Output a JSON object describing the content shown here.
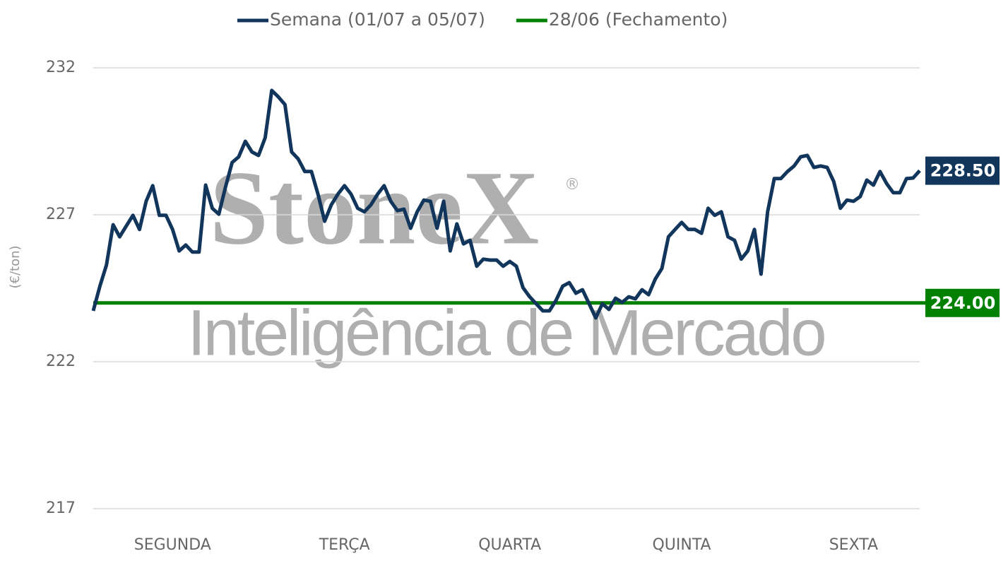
{
  "chart_data": {
    "type": "line",
    "y_label": "(€/ton)",
    "watermark": {
      "brand": "StoneX",
      "mark": "®",
      "tagline": "Inteligência de Mercado"
    },
    "categories": [
      null,
      null,
      null,
      null,
      null,
      null,
      null,
      null,
      null,
      null,
      null,
      null,
      "SEGUNDA",
      null,
      null,
      null,
      null,
      null,
      null,
      null,
      null,
      null,
      null,
      null,
      null,
      null,
      null,
      null,
      null,
      null,
      null,
      null,
      null,
      null,
      null,
      null,
      null,
      null,
      "TERÇA",
      null,
      null,
      null,
      null,
      null,
      null,
      null,
      null,
      null,
      null,
      null,
      null,
      null,
      null,
      null,
      null,
      null,
      null,
      null,
      null,
      null,
      null,
      null,
      null,
      "QUARTA",
      null,
      null,
      null,
      null,
      null,
      null,
      null,
      null,
      null,
      null,
      null,
      null,
      null,
      null,
      null,
      null,
      null,
      null,
      null,
      null,
      null,
      null,
      null,
      null,
      null,
      "QUINTA",
      null,
      null,
      null,
      null,
      null,
      null,
      null,
      null,
      null,
      null,
      null,
      null,
      null,
      null,
      null,
      null,
      null,
      null,
      null,
      null,
      null,
      null,
      null,
      null,
      null,
      "SEXTA",
      null,
      null,
      null,
      null,
      null,
      null,
      null,
      null,
      null,
      null
    ],
    "series": [
      {
        "name": "Semana (01/07 a 05/07)",
        "color": "#12355b",
        "values": [
          223.73,
          224.57,
          225.29,
          226.66,
          226.25,
          226.62,
          226.98,
          226.5,
          227.46,
          227.99,
          226.98,
          226.98,
          226.5,
          225.77,
          225.97,
          225.73,
          225.73,
          228.01,
          227.22,
          227.02,
          227.94,
          228.78,
          228.97,
          229.5,
          229.14,
          229.02,
          229.62,
          231.23,
          231.01,
          230.75,
          229.14,
          228.9,
          228.47,
          228.47,
          227.7,
          226.78,
          227.34,
          227.7,
          227.99,
          227.7,
          227.22,
          227.1,
          227.34,
          227.7,
          227.99,
          227.46,
          227.14,
          227.19,
          226.54,
          227.1,
          227.5,
          227.46,
          226.54,
          227.46,
          225.77,
          226.69,
          226.01,
          226.13,
          225.25,
          225.49,
          225.46,
          225.46,
          225.25,
          225.41,
          225.25,
          224.52,
          224.21,
          223.97,
          223.73,
          223.73,
          224.09,
          224.57,
          224.69,
          224.33,
          224.45,
          223.97,
          223.49,
          223.97,
          223.78,
          224.16,
          224.02,
          224.21,
          224.14,
          224.45,
          224.28,
          224.81,
          225.17,
          226.25,
          226.5,
          226.74,
          226.5,
          226.5,
          226.37,
          227.22,
          226.98,
          227.1,
          226.25,
          226.13,
          225.49,
          225.77,
          226.5,
          224.98,
          227.1,
          228.23,
          228.23,
          228.47,
          228.66,
          228.97,
          229.02,
          228.61,
          228.66,
          228.61,
          228.13,
          227.22,
          227.5,
          227.46,
          227.62,
          228.18,
          228.01,
          228.47,
          228.06,
          227.75,
          227.75,
          228.23,
          228.25,
          228.5
        ],
        "value_labels": [
          null,
          null,
          null,
          null,
          null,
          null,
          null,
          null,
          null,
          null,
          null,
          null,
          null,
          null,
          null,
          null,
          null,
          null,
          null,
          null,
          null,
          null,
          null,
          null,
          null,
          null,
          null,
          null,
          null,
          null,
          null,
          null,
          null,
          null,
          null,
          null,
          null,
          null,
          null,
          null,
          null,
          null,
          null,
          null,
          null,
          null,
          null,
          null,
          null,
          null,
          null,
          null,
          null,
          null,
          null,
          null,
          null,
          null,
          null,
          null,
          null,
          null,
          null,
          null,
          null,
          null,
          null,
          null,
          null,
          null,
          null,
          null,
          null,
          null,
          null,
          null,
          null,
          null,
          null,
          null,
          null,
          null,
          null,
          null,
          null,
          null,
          null,
          null,
          null,
          null,
          null,
          null,
          null,
          null,
          null,
          null,
          null,
          null,
          null,
          null,
          null,
          null,
          null,
          null,
          null,
          null,
          null,
          null,
          null,
          null,
          null,
          null,
          null,
          null,
          null,
          null,
          null,
          null,
          null,
          null,
          null,
          null,
          null,
          null,
          null,
          "228.50"
        ]
      }
    ],
    "reference_lines": [
      {
        "name": "28/06 (Fechamento)",
        "color": "#008000",
        "value": 224,
        "value_label": "224.00"
      }
    ],
    "ylim": [
      217,
      232
    ],
    "yticks": [
      217,
      222,
      227,
      232
    ],
    "grid": true
  }
}
